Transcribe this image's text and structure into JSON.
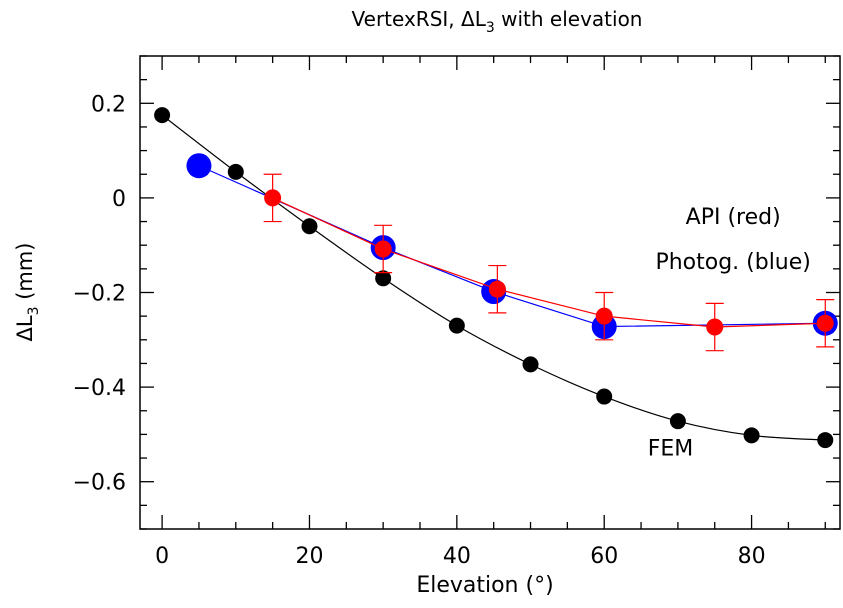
{
  "chart_data": {
    "type": "scatter",
    "title_prefix": "VertexRSI, ΔL",
    "title_sub": "3",
    "title_suffix": " with elevation",
    "xlabel": "Elevation (°)",
    "ylabel_prefix": "ΔL",
    "ylabel_sub": "3",
    "ylabel_suffix": " (mm)",
    "xlim": [
      -3,
      92
    ],
    "ylim": [
      -0.7,
      0.3
    ],
    "x_ticks": [
      0,
      20,
      40,
      60,
      80
    ],
    "x_tick_labels": [
      "0",
      "20",
      "40",
      "60",
      "80"
    ],
    "y_ticks": [
      0.2,
      0,
      -0.2,
      -0.4,
      -0.6
    ],
    "y_tick_labels": [
      "0.2",
      "0",
      "−0.2",
      "−0.4",
      "−0.6"
    ],
    "grid": false,
    "series": [
      {
        "name": "FEM",
        "color": "#000000",
        "x": [
          0,
          10,
          20,
          30,
          40,
          50,
          60,
          70,
          80,
          90
        ],
        "y": [
          0.175,
          0.055,
          -0.06,
          -0.17,
          -0.27,
          -0.352,
          -0.42,
          -0.472,
          -0.502,
          -0.512
        ]
      },
      {
        "name": "Photog. (blue)",
        "color": "#0000ff",
        "x": [
          5,
          30,
          45,
          60,
          90
        ],
        "y": [
          0.068,
          -0.105,
          -0.198,
          -0.272,
          -0.265
        ]
      },
      {
        "name": "API (red)",
        "color": "#ff0000",
        "x": [
          15,
          30,
          45.5,
          60,
          75,
          90
        ],
        "y": [
          0.0,
          -0.108,
          -0.193,
          -0.25,
          -0.273,
          -0.265
        ],
        "err": [
          0.05,
          0.05,
          0.05,
          0.05,
          0.05,
          0.05
        ]
      }
    ],
    "annotations": [
      {
        "text": "API (red)",
        "x": 77.5,
        "y": -0.055
      },
      {
        "text": "Photog. (blue)",
        "x": 77.5,
        "y": -0.15
      },
      {
        "text": "FEM",
        "x": 69,
        "y": -0.545
      }
    ]
  }
}
